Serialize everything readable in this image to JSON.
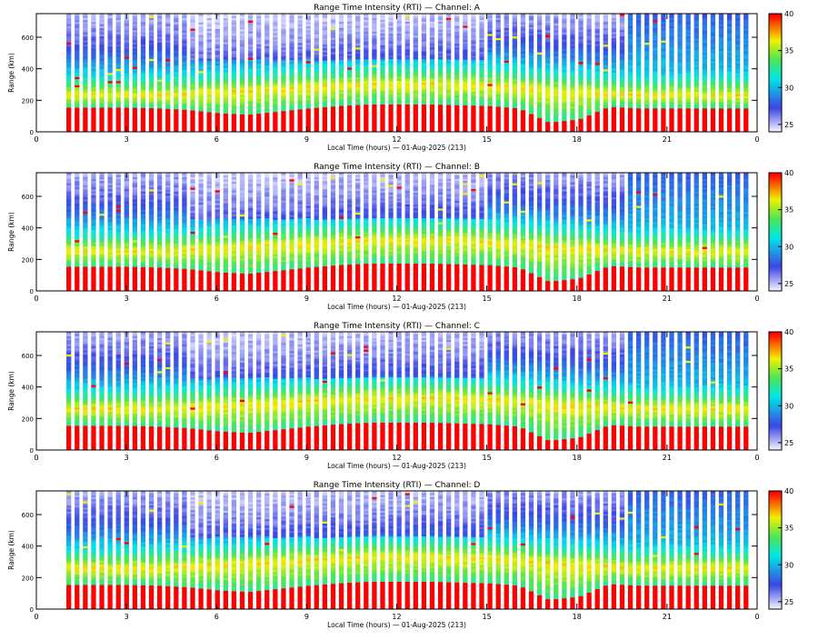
{
  "chart_data": [
    {
      "type": "heatmap",
      "title": "Range Time Intensity (RTI) — Channel: A",
      "xlabel": "Local Time (hours) — 01-Aug-2025 (213)",
      "ylabel": "Range (km)",
      "xlim": [
        0,
        24
      ],
      "ylim": [
        0,
        750
      ],
      "xticks": [
        "0",
        "3",
        "6",
        "9",
        "12",
        "15",
        "18",
        "21",
        "0"
      ],
      "yticks": [
        "0",
        "200",
        "400",
        "600"
      ],
      "colorbar": {
        "min": 24,
        "max": 40,
        "ticks": [
          "25",
          "30",
          "35",
          "40"
        ],
        "colormap": "rainbow"
      },
      "floor_km": [
        150,
        155,
        155,
        155,
        150,
        140,
        120,
        110,
        130,
        150,
        165,
        175,
        175,
        175,
        170,
        165,
        150,
        60,
        80,
        160,
        150,
        150,
        150,
        150
      ],
      "yellow_band_km": [
        230,
        230,
        230,
        230,
        230,
        240,
        250,
        260,
        270,
        280,
        290,
        300,
        300,
        300,
        300,
        290,
        280,
        260,
        250,
        240,
        230,
        230,
        230,
        230
      ]
    },
    {
      "type": "heatmap",
      "title": "Range Time Intensity (RTI) — Channel: B",
      "xlabel": "Local Time (hours) — 01-Aug-2025 (213)",
      "ylabel": "Range (km)",
      "xlim": [
        0,
        24
      ],
      "ylim": [
        0,
        750
      ],
      "xticks": [
        "0",
        "3",
        "6",
        "9",
        "12",
        "15",
        "18",
        "21",
        "0"
      ],
      "yticks": [
        "0",
        "200",
        "400",
        "600"
      ],
      "colorbar": {
        "min": 24,
        "max": 40,
        "ticks": [
          "25",
          "30",
          "35",
          "40"
        ],
        "colormap": "rainbow"
      },
      "floor_km": [
        150,
        155,
        155,
        155,
        150,
        140,
        120,
        110,
        130,
        150,
        165,
        175,
        175,
        175,
        170,
        165,
        150,
        60,
        80,
        160,
        150,
        150,
        150,
        150
      ],
      "yellow_band_km": [
        250,
        250,
        250,
        250,
        250,
        260,
        270,
        280,
        290,
        300,
        310,
        320,
        320,
        320,
        320,
        310,
        300,
        280,
        270,
        260,
        250,
        250,
        250,
        250
      ]
    },
    {
      "type": "heatmap",
      "title": "Range Time Intensity (RTI) — Channel: C",
      "xlabel": "Local Time (hours) — 01-Aug-2025 (213)",
      "ylabel": "Range (km)",
      "xlim": [
        0,
        24
      ],
      "ylim": [
        0,
        750
      ],
      "xticks": [
        "0",
        "3",
        "6",
        "9",
        "12",
        "15",
        "18",
        "21",
        "0"
      ],
      "yticks": [
        "0",
        "200",
        "400",
        "600"
      ],
      "colorbar": {
        "min": 24,
        "max": 40,
        "ticks": [
          "25",
          "30",
          "35",
          "40"
        ],
        "colormap": "rainbow"
      },
      "floor_km": [
        150,
        155,
        155,
        155,
        150,
        140,
        120,
        110,
        130,
        150,
        165,
        175,
        175,
        175,
        170,
        165,
        150,
        60,
        80,
        160,
        150,
        150,
        150,
        150
      ],
      "yellow_band_km": [
        260,
        260,
        260,
        260,
        260,
        270,
        280,
        290,
        300,
        310,
        320,
        330,
        330,
        330,
        330,
        320,
        310,
        290,
        280,
        270,
        260,
        260,
        260,
        260
      ]
    },
    {
      "type": "heatmap",
      "title": "Range Time Intensity (RTI) — Channel: D",
      "xlabel": "Local Time (hours) — 01-Aug-2025 (213)",
      "ylabel": "Range (km)",
      "xlim": [
        0,
        24
      ],
      "ylim": [
        0,
        750
      ],
      "xticks": [
        "0",
        "3",
        "6",
        "9",
        "12",
        "15",
        "18",
        "21",
        "0"
      ],
      "yticks": [
        "0",
        "200",
        "400",
        "600"
      ],
      "colorbar": {
        "min": 24,
        "max": 40,
        "ticks": [
          "25",
          "30",
          "35",
          "40"
        ],
        "colormap": "rainbow"
      },
      "floor_km": [
        150,
        155,
        155,
        155,
        150,
        140,
        120,
        110,
        130,
        150,
        165,
        175,
        175,
        175,
        170,
        165,
        150,
        60,
        80,
        160,
        150,
        150,
        150,
        150
      ],
      "yellow_band_km": [
        260,
        260,
        260,
        260,
        260,
        270,
        280,
        290,
        300,
        310,
        320,
        330,
        330,
        330,
        330,
        320,
        310,
        290,
        280,
        270,
        260,
        260,
        260,
        260
      ]
    }
  ],
  "colors": {
    "low": "#f0f0ff",
    "blue": "#3c46e6",
    "cyan": "#00e6e6",
    "green": "#50e650",
    "yellow": "#f0f000",
    "red": "#ff0000",
    "background": "#ffffff"
  }
}
